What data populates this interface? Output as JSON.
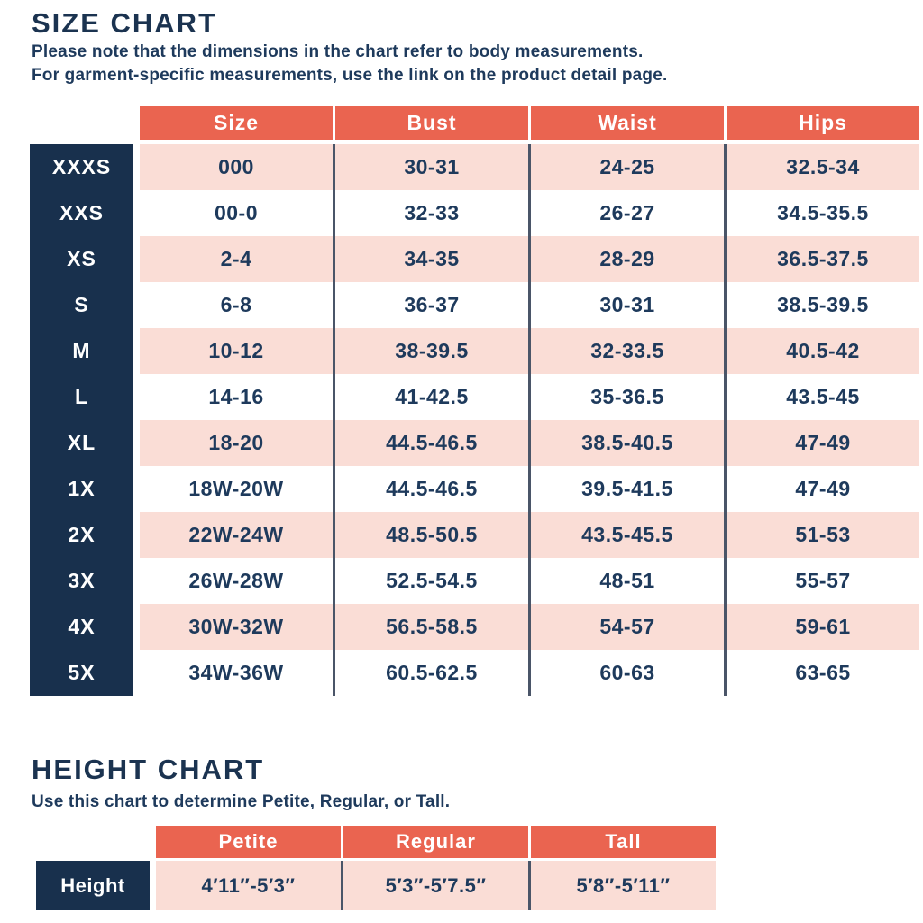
{
  "size_chart": {
    "title": "SIZE CHART",
    "notes": [
      "Please note that the dimensions in the chart refer to body measurements.",
      "For garment-specific measurements, use the link on the product detail page."
    ],
    "columns": [
      "Size",
      "Bust",
      "Waist",
      "Hips"
    ],
    "rows": [
      {
        "label": "XXXS",
        "size": "000",
        "bust": "30-31",
        "waist": "24-25",
        "hips": "32.5-34"
      },
      {
        "label": "XXS",
        "size": "00-0",
        "bust": "32-33",
        "waist": "26-27",
        "hips": "34.5-35.5"
      },
      {
        "label": "XS",
        "size": "2-4",
        "bust": "34-35",
        "waist": "28-29",
        "hips": "36.5-37.5"
      },
      {
        "label": "S",
        "size": "6-8",
        "bust": "36-37",
        "waist": "30-31",
        "hips": "38.5-39.5"
      },
      {
        "label": "M",
        "size": "10-12",
        "bust": "38-39.5",
        "waist": "32-33.5",
        "hips": "40.5-42"
      },
      {
        "label": "L",
        "size": "14-16",
        "bust": "41-42.5",
        "waist": "35-36.5",
        "hips": "43.5-45"
      },
      {
        "label": "XL",
        "size": "18-20",
        "bust": "44.5-46.5",
        "waist": "38.5-40.5",
        "hips": "47-49"
      },
      {
        "label": "1X",
        "size": "18W-20W",
        "bust": "44.5-46.5",
        "waist": "39.5-41.5",
        "hips": "47-49"
      },
      {
        "label": "2X",
        "size": "22W-24W",
        "bust": "48.5-50.5",
        "waist": "43.5-45.5",
        "hips": "51-53"
      },
      {
        "label": "3X",
        "size": "26W-28W",
        "bust": "52.5-54.5",
        "waist": "48-51",
        "hips": "55-57"
      },
      {
        "label": "4X",
        "size": "30W-32W",
        "bust": "56.5-58.5",
        "waist": "54-57",
        "hips": "59-61"
      },
      {
        "label": "5X",
        "size": "34W-36W",
        "bust": "60.5-62.5",
        "waist": "60-63",
        "hips": "63-65"
      }
    ]
  },
  "height_chart": {
    "title": "HEIGHT CHART",
    "note": "Use this chart to determine Petite, Regular, or Tall.",
    "columns": [
      "Petite",
      "Regular",
      "Tall"
    ],
    "row_label": "Height",
    "values": [
      "4′11″-5′3″",
      "5′3″-5′7.5″",
      "5′8″-5′11″"
    ]
  },
  "colors": {
    "coral": "#EA6450",
    "navy": "#18304D",
    "pink": "#FADDD6",
    "text_navy": "#1E3A5C",
    "divider": "#4A5568"
  }
}
